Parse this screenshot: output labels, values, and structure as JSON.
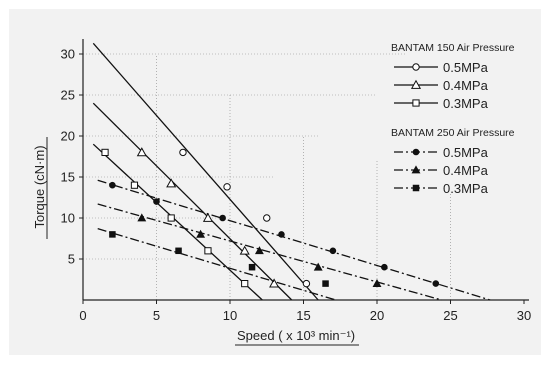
{
  "chart_data": {
    "type": "line",
    "xlabel": "Speed ( x 10³ min⁻¹)",
    "ylabel": "Torque (cN·m)",
    "xlim": [
      0,
      30
    ],
    "ylim": [
      0,
      32
    ],
    "x_ticks": [
      "0",
      "5",
      "10",
      "15",
      "20",
      "25",
      "30"
    ],
    "y_ticks": [
      "5",
      "10",
      "15",
      "20",
      "25",
      "30"
    ],
    "grid": "partial dotted",
    "legend_position": "top-right",
    "legend_groups": [
      {
        "title": "BANTAM 150  Air Pressure",
        "series": [
          0,
          1,
          2
        ]
      },
      {
        "title": "BANTAM 250  Air Pressure",
        "series": [
          3,
          4,
          5
        ]
      }
    ],
    "series": [
      {
        "name": "0.5MPa",
        "group": "BANTAM 150",
        "line": "solid",
        "marker": "circle-open",
        "line_x": [
          0.7,
          16.0
        ],
        "line_y": [
          31.3,
          0
        ],
        "points": [
          [
            6.8,
            18.0
          ],
          [
            9.8,
            13.8
          ],
          [
            12.5,
            10.0
          ],
          [
            15.2,
            2.0
          ]
        ]
      },
      {
        "name": "0.4MPa",
        "group": "BANTAM 150",
        "line": "solid",
        "marker": "triangle-open",
        "line_x": [
          0.7,
          14.2
        ],
        "line_y": [
          24.0,
          0
        ],
        "points": [
          [
            4.0,
            18.0
          ],
          [
            6.0,
            14.2
          ],
          [
            8.5,
            10.0
          ],
          [
            11.0,
            6.0
          ],
          [
            13.0,
            2.0
          ]
        ]
      },
      {
        "name": "0.3MPa",
        "group": "BANTAM 150",
        "line": "solid",
        "marker": "square-open",
        "line_x": [
          0.7,
          12.2
        ],
        "line_y": [
          19.0,
          0
        ],
        "points": [
          [
            1.5,
            18.0
          ],
          [
            3.5,
            14.0
          ],
          [
            6.0,
            10.0
          ],
          [
            8.5,
            6.0
          ],
          [
            11.0,
            2.0
          ]
        ]
      },
      {
        "name": "0.5MPa",
        "group": "BANTAM 250",
        "line": "dashdot",
        "marker": "circle-filled",
        "line_x": [
          1.0,
          27.7
        ],
        "line_y": [
          14.6,
          0
        ],
        "points": [
          [
            2.0,
            14.0
          ],
          [
            5.0,
            12.0
          ],
          [
            9.5,
            10.0
          ],
          [
            13.5,
            8.0
          ],
          [
            17.0,
            6.0
          ],
          [
            20.5,
            4.0
          ],
          [
            24.0,
            2.0
          ]
        ]
      },
      {
        "name": "0.4MPa",
        "group": "BANTAM 250",
        "line": "dashdot",
        "marker": "triangle-filled",
        "line_x": [
          1.0,
          24.4
        ],
        "line_y": [
          11.7,
          0
        ],
        "points": [
          [
            4.0,
            10.0
          ],
          [
            8.0,
            8.0
          ],
          [
            12.0,
            6.0
          ],
          [
            16.0,
            4.0
          ],
          [
            20.0,
            2.0
          ]
        ]
      },
      {
        "name": "0.3MPa",
        "group": "BANTAM 250",
        "line": "dashdot",
        "marker": "square-filled",
        "line_x": [
          1.0,
          17.2
        ],
        "line_y": [
          8.7,
          0
        ],
        "points": [
          [
            2.0,
            8.0
          ],
          [
            6.5,
            6.0
          ],
          [
            11.5,
            4.0
          ],
          [
            16.5,
            2.0
          ]
        ]
      }
    ]
  }
}
